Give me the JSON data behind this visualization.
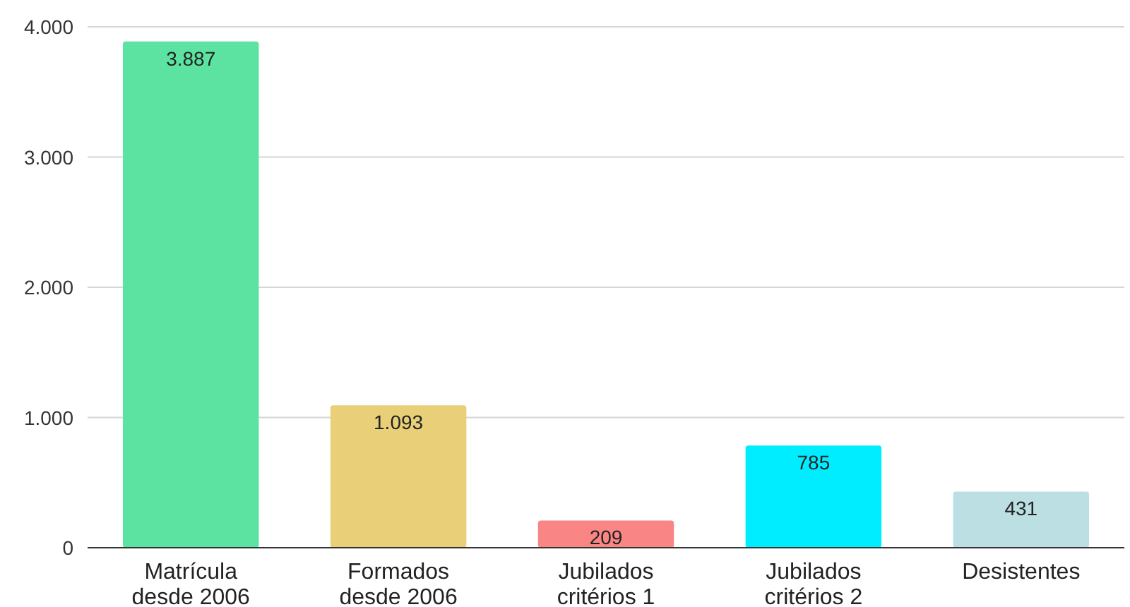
{
  "chart_data": {
    "type": "bar",
    "categories": [
      "Matrícula desde 2006",
      "Formados desde 2006",
      "Jubilados critérios 1",
      "Jubilados critérios 2",
      "Desistentes"
    ],
    "values": [
      3887,
      1093,
      209,
      785,
      431
    ],
    "colors": [
      "#5de3a1",
      "#e8cf78",
      "#f98585",
      "#00ecff",
      "#bcdfe4"
    ],
    "value_labels": [
      "3.887",
      "1.093",
      "209",
      "785",
      "431"
    ],
    "ylim": [
      0,
      4000
    ],
    "yticks": [
      {
        "value": 0,
        "label": "0"
      },
      {
        "value": 1000,
        "label": "1.000"
      },
      {
        "value": 2000,
        "label": "2.000"
      },
      {
        "value": 3000,
        "label": "3.000"
      },
      {
        "value": 4000,
        "label": "4.000"
      }
    ],
    "grid": "y"
  }
}
